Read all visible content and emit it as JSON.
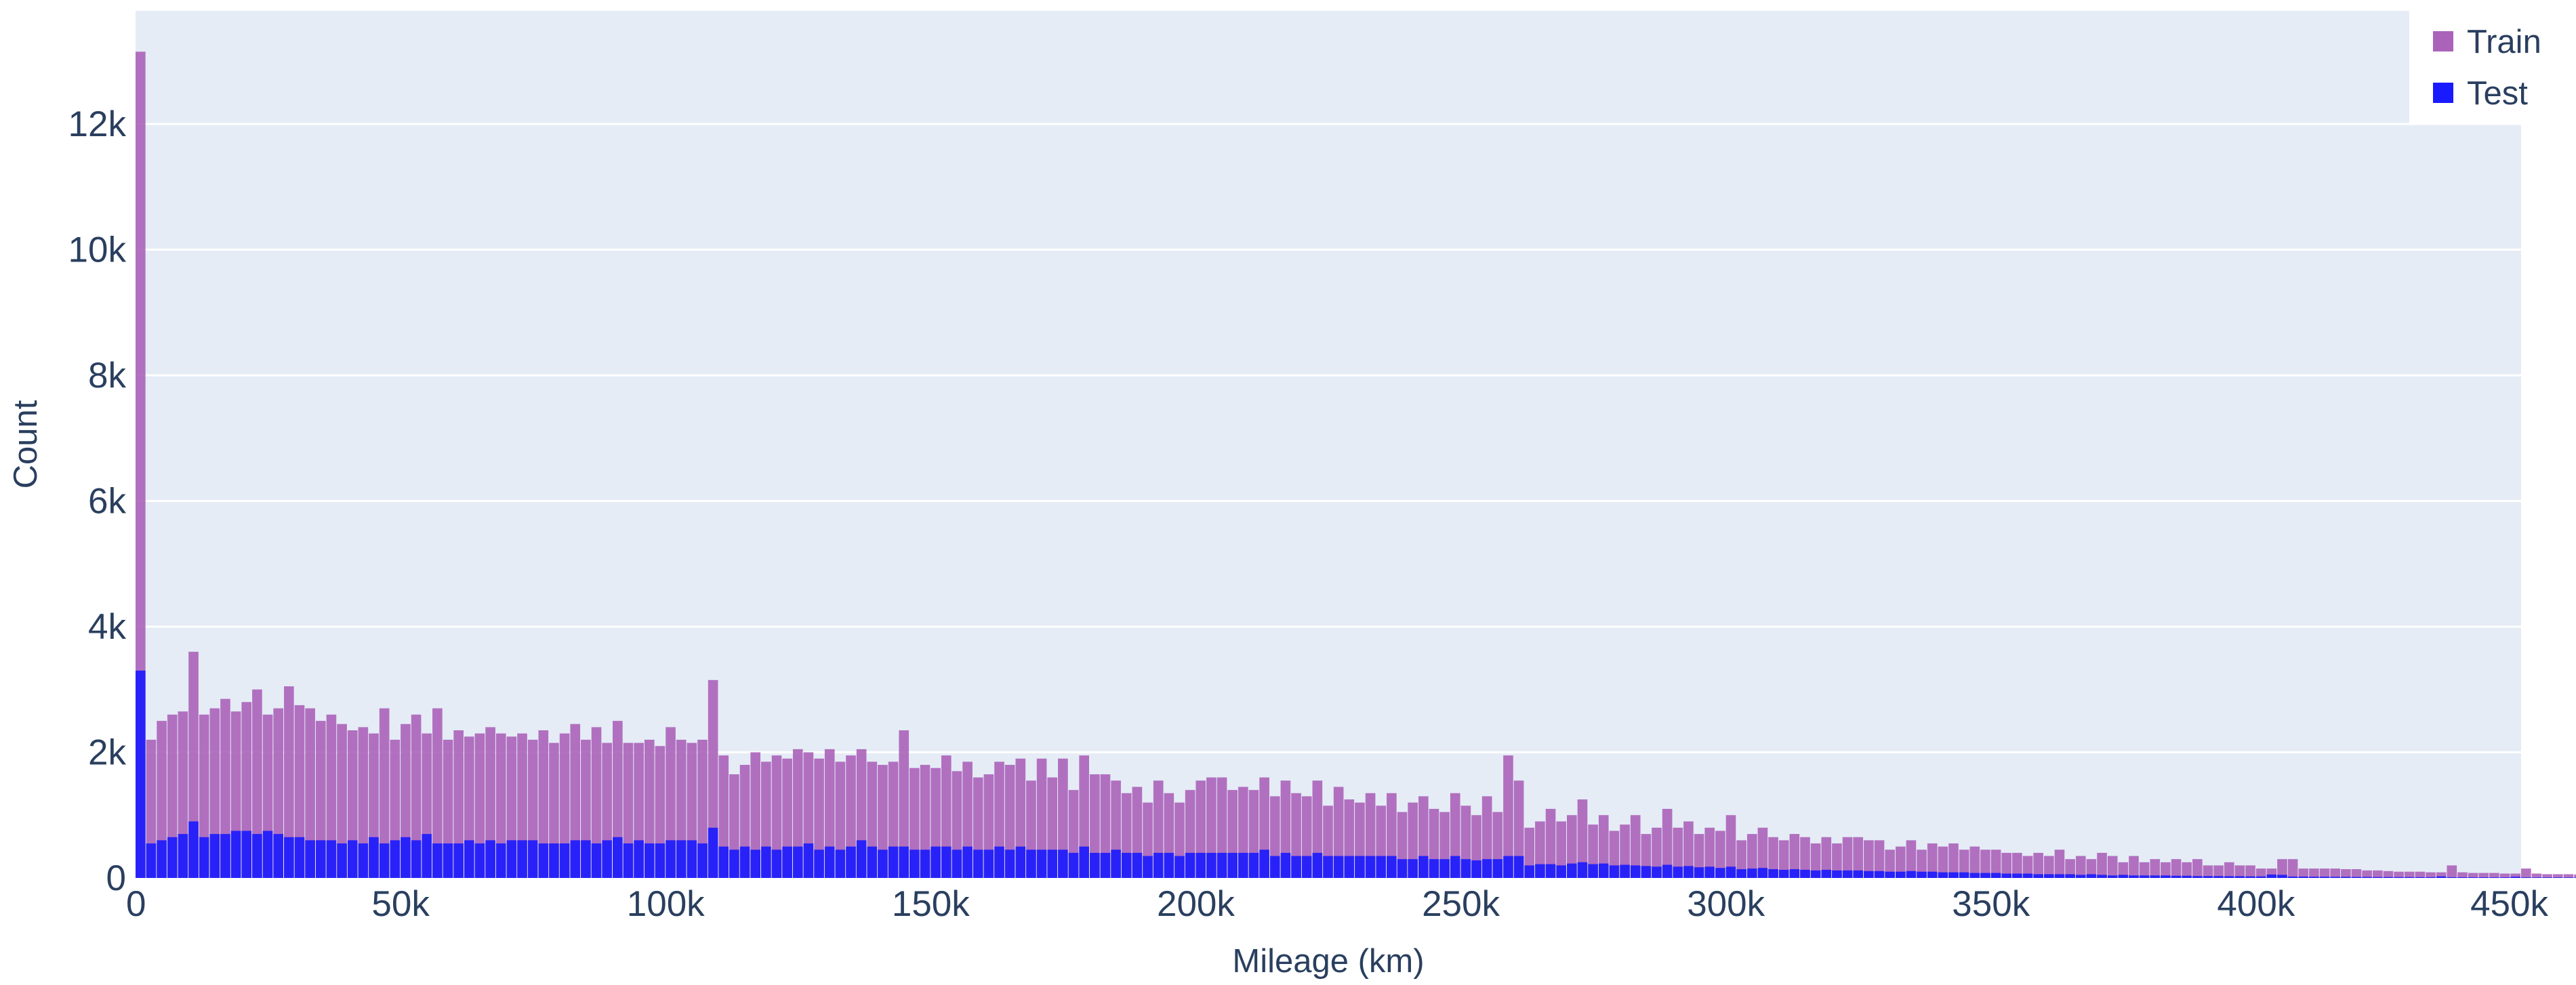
{
  "chart_data": {
    "type": "bar",
    "barmode": "overlay",
    "xlabel": "Mileage (km)",
    "ylabel": "Count",
    "xlim": [
      0,
      450000
    ],
    "ylim": [
      0,
      13800
    ],
    "bin_width": 2000,
    "x_ticks": [
      0,
      50000,
      100000,
      150000,
      200000,
      250000,
      300000,
      350000,
      400000,
      450000
    ],
    "x_tick_labels": [
      "0",
      "50k",
      "100k",
      "150k",
      "200k",
      "250k",
      "300k",
      "350k",
      "400k",
      "450k"
    ],
    "y_ticks": [
      0,
      2000,
      4000,
      6000,
      8000,
      10000,
      12000
    ],
    "y_tick_labels": [
      "0",
      "2k",
      "4k",
      "6k",
      "8k",
      "10k",
      "12k"
    ],
    "grid": true,
    "plot_bgcolor": "#e5ecf6",
    "legend_position": "top-right",
    "series": [
      {
        "name": "Train",
        "color": "#ab63b9",
        "values": [
          13150,
          2200,
          2500,
          2600,
          2650,
          3600,
          2600,
          2700,
          2850,
          2650,
          2800,
          3000,
          2600,
          2700,
          3050,
          2750,
          2700,
          2500,
          2600,
          2450,
          2350,
          2400,
          2300,
          2700,
          2200,
          2450,
          2600,
          2300,
          2700,
          2200,
          2350,
          2250,
          2300,
          2400,
          2300,
          2250,
          2300,
          2200,
          2350,
          2150,
          2300,
          2450,
          2200,
          2400,
          2150,
          2500,
          2150,
          2150,
          2200,
          2100,
          2400,
          2200,
          2150,
          2200,
          3150,
          1950,
          1650,
          1800,
          2000,
          1850,
          1950,
          1900,
          2050,
          2000,
          1900,
          2050,
          1850,
          1950,
          2050,
          1850,
          1800,
          1850,
          2350,
          1750,
          1800,
          1750,
          1950,
          1700,
          1850,
          1600,
          1650,
          1850,
          1800,
          1900,
          1550,
          1900,
          1600,
          1900,
          1400,
          1950,
          1650,
          1650,
          1550,
          1350,
          1450,
          1200,
          1550,
          1350,
          1200,
          1400,
          1550,
          1600,
          1600,
          1400,
          1450,
          1400,
          1600,
          1300,
          1550,
          1350,
          1300,
          1550,
          1150,
          1450,
          1250,
          1200,
          1350,
          1150,
          1350,
          1050,
          1200,
          1300,
          1100,
          1050,
          1350,
          1150,
          1000,
          1300,
          1050,
          1950,
          1550,
          800,
          900,
          1100,
          900,
          1000,
          1250,
          850,
          1000,
          750,
          850,
          1000,
          700,
          800,
          1100,
          800,
          900,
          700,
          800,
          750,
          1000,
          600,
          700,
          800,
          650,
          600,
          700,
          650,
          550,
          650,
          550,
          650,
          650,
          600,
          600,
          450,
          500,
          600,
          450,
          550,
          500,
          550,
          450,
          500,
          450,
          450,
          400,
          400,
          350,
          400,
          350,
          450,
          300,
          350,
          300,
          400,
          350,
          250,
          350,
          250,
          300,
          250,
          300,
          250,
          300,
          200,
          200,
          250,
          200,
          200,
          150,
          150,
          300,
          300,
          150,
          150,
          150,
          150,
          140,
          140,
          120,
          120,
          110,
          100,
          100,
          100,
          90,
          90,
          200,
          90,
          80,
          80,
          80,
          70,
          70,
          150,
          70,
          60,
          60,
          60,
          55,
          55,
          50,
          50,
          180,
          50,
          45,
          45,
          45,
          40,
          40,
          40,
          40,
          38,
          38,
          36,
          36,
          35,
          35,
          34,
          34,
          33,
          33,
          32,
          32,
          31,
          31,
          30,
          30,
          29,
          29,
          28,
          28,
          27,
          27,
          26,
          26,
          25,
          25,
          24,
          24,
          23,
          23,
          22,
          22,
          21,
          21,
          20,
          60,
          20,
          20,
          19,
          19,
          18,
          18,
          17,
          17,
          16,
          16,
          15,
          15,
          14,
          14,
          13,
          13,
          12,
          12,
          11,
          11,
          10,
          10,
          10,
          10,
          9,
          9,
          9,
          9,
          8,
          8,
          8,
          8,
          7,
          7,
          7,
          7,
          6,
          6,
          6,
          6,
          5,
          5,
          5,
          5,
          5,
          5,
          4,
          4,
          4,
          4,
          4,
          4,
          3,
          3,
          3,
          3,
          3,
          3,
          3,
          3,
          2,
          2,
          2,
          2,
          2,
          2,
          2,
          2,
          2,
          2,
          2,
          2,
          1,
          1,
          1,
          1,
          1,
          1,
          1,
          1,
          1,
          1,
          1,
          1,
          1,
          1,
          1,
          1,
          1,
          1,
          1,
          1,
          1,
          1,
          1,
          1,
          1,
          1,
          1,
          1,
          1,
          1,
          1,
          1,
          1,
          1,
          1,
          1,
          1,
          1,
          1,
          1,
          1,
          1,
          1,
          1,
          1,
          1,
          1,
          1,
          1,
          1,
          1,
          1,
          1,
          1,
          1,
          1,
          1,
          1,
          1,
          1,
          1,
          1,
          1,
          1,
          1,
          1,
          1,
          1,
          1,
          1,
          1,
          1,
          1,
          1,
          1,
          1,
          1,
          1,
          1,
          1,
          1,
          1,
          1,
          1,
          1
        ]
      },
      {
        "name": "Test",
        "color": "#1a1aff",
        "values": [
          3300,
          550,
          600,
          650,
          700,
          900,
          650,
          700,
          700,
          750,
          750,
          700,
          750,
          700,
          650,
          650,
          600,
          600,
          600,
          550,
          600,
          550,
          650,
          550,
          600,
          650,
          600,
          700,
          550,
          550,
          550,
          600,
          550,
          600,
          550,
          600,
          600,
          600,
          550,
          550,
          550,
          600,
          600,
          550,
          600,
          650,
          550,
          600,
          550,
          550,
          600,
          600,
          600,
          550,
          800,
          500,
          450,
          500,
          450,
          500,
          450,
          500,
          500,
          550,
          450,
          500,
          450,
          500,
          600,
          500,
          450,
          500,
          500,
          450,
          450,
          500,
          500,
          450,
          500,
          450,
          450,
          500,
          450,
          500,
          450,
          450,
          450,
          450,
          400,
          500,
          400,
          400,
          450,
          400,
          400,
          350,
          400,
          400,
          350,
          400,
          400,
          400,
          400,
          400,
          400,
          400,
          450,
          350,
          400,
          350,
          350,
          400,
          350,
          350,
          350,
          350,
          350,
          350,
          350,
          300,
          300,
          350,
          300,
          300,
          350,
          300,
          280,
          300,
          300,
          350,
          350,
          200,
          220,
          220,
          200,
          230,
          250,
          220,
          230,
          200,
          210,
          200,
          190,
          180,
          210,
          180,
          190,
          170,
          180,
          160,
          180,
          140,
          150,
          160,
          140,
          130,
          140,
          130,
          120,
          130,
          120,
          120,
          120,
          110,
          110,
          100,
          100,
          110,
          100,
          100,
          90,
          90,
          90,
          80,
          80,
          80,
          70,
          70,
          70,
          60,
          60,
          60,
          60,
          50,
          60,
          50,
          40,
          50,
          40,
          40,
          40,
          40,
          35,
          35,
          30,
          30,
          30,
          28,
          28,
          25,
          25,
          55,
          50,
          22,
          22,
          20,
          20,
          18,
          18,
          16,
          16,
          15,
          15,
          14,
          14,
          13,
          13,
          25,
          12,
          12,
          11,
          11,
          10,
          10,
          20,
          10,
          9,
          9,
          9,
          8,
          8,
          8,
          8,
          25,
          7,
          7,
          7,
          7,
          6,
          6,
          6,
          6,
          6,
          6,
          5,
          5,
          5,
          5,
          5,
          5,
          5,
          5,
          4,
          4,
          4,
          4,
          4,
          4,
          4,
          4,
          3,
          3,
          3,
          3,
          3,
          3,
          3,
          3,
          3,
          3,
          3,
          10,
          3,
          3,
          2,
          2,
          2,
          2,
          2,
          2,
          2,
          2,
          2,
          2,
          2,
          2,
          2,
          2,
          2,
          2,
          1,
          1,
          1,
          1,
          1,
          1,
          1,
          1,
          1,
          1,
          1,
          1,
          1,
          1,
          1,
          1,
          1,
          1,
          1,
          1,
          1,
          1,
          1,
          1,
          1,
          1,
          1,
          1,
          1,
          1,
          1,
          1,
          1,
          1,
          1,
          1,
          1,
          1,
          1,
          1,
          1,
          1,
          1,
          1,
          1,
          1,
          1,
          1,
          1,
          1,
          1,
          1,
          1,
          1,
          1,
          1,
          1,
          1,
          1,
          1,
          1,
          1,
          1,
          1,
          1,
          1,
          1,
          1,
          1,
          1,
          1,
          1,
          1,
          1,
          1,
          1,
          1,
          1,
          1,
          1,
          1,
          1,
          1,
          1,
          1,
          1,
          1,
          1,
          1,
          1,
          1,
          1,
          1,
          1,
          1,
          1,
          1,
          1,
          1,
          1,
          1,
          1,
          1,
          1,
          1,
          1,
          1,
          1,
          1,
          1,
          1,
          1,
          1,
          1,
          1,
          1,
          1,
          1,
          1,
          1,
          1,
          1,
          1,
          1,
          1,
          1,
          1,
          1,
          1,
          1,
          1,
          1,
          1,
          1,
          1,
          1,
          1,
          1,
          1,
          1,
          1,
          1,
          1,
          1,
          1,
          1,
          1,
          1,
          1,
          1,
          1,
          1
        ]
      }
    ]
  }
}
